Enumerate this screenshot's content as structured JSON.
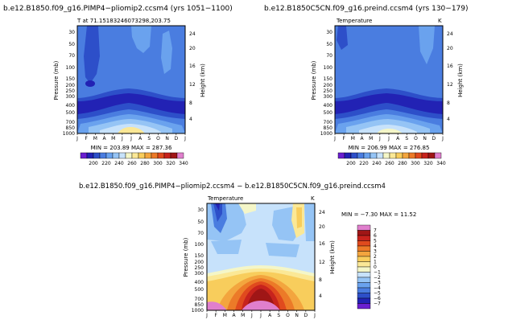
{
  "chart_data": [
    {
      "type": "heatmap",
      "title": "b.e12.B1850.f09_g16.PIMP4−pliomip2.ccsm4  (yrs 1051−1100)",
      "subtitle": "T at 71.15183246073298,203.75",
      "xlabel": "",
      "ylabel": "Pressure (mb)",
      "y2label": "Height (km)",
      "x_ticks": [
        "J",
        "F",
        "M",
        "A",
        "M",
        "J",
        "J",
        "A",
        "S",
        "O",
        "N",
        "D",
        "J"
      ],
      "y_ticks": [
        "30",
        "50",
        "70",
        "100",
        "150",
        "200",
        "250",
        "300",
        "400",
        "500",
        "700",
        "850",
        "1000"
      ],
      "y2_ticks": [
        "24",
        "20",
        "16",
        "12",
        "8",
        "4"
      ],
      "ylim": [
        1000,
        30
      ],
      "min_max_label": "MIN = 203.89  MAX = 287.36",
      "min": 203.89,
      "max": 287.36,
      "colorbar_ticks": [
        "200",
        "220",
        "240",
        "260",
        "280",
        "300",
        "320",
        "340"
      ],
      "colorbar_colors": [
        "#6a1fd0",
        "#2222b4",
        "#2d4fc9",
        "#4a7de0",
        "#6aa2ee",
        "#95c4f5",
        "#c7e2fb",
        "#f4f6c8",
        "#fbe896",
        "#f8cd5c",
        "#f3a53e",
        "#ec7a28",
        "#e04a1e",
        "#c7231d",
        "#9f1616",
        "#e07fcd"
      ]
    },
    {
      "type": "heatmap",
      "title": "b.e12.B1850C5CN.f09_g16.preind.ccsm4  (yrs 130−179)",
      "subtitle": "Temperature",
      "unit": "K",
      "xlabel": "",
      "ylabel": "Pressure (mb)",
      "y2label": "Height (km)",
      "x_ticks": [
        "J",
        "F",
        "M",
        "A",
        "M",
        "J",
        "J",
        "A",
        "S",
        "O",
        "N",
        "D",
        "J"
      ],
      "y_ticks": [
        "30",
        "50",
        "70",
        "100",
        "150",
        "200",
        "250",
        "300",
        "400",
        "500",
        "700",
        "850",
        "1000"
      ],
      "y2_ticks": [
        "24",
        "20",
        "16",
        "12",
        "8",
        "4"
      ],
      "ylim": [
        1000,
        30
      ],
      "min_max_label": "MIN = 206.99  MAX = 276.85",
      "min": 206.99,
      "max": 276.85,
      "colorbar_ticks": [
        "200",
        "220",
        "240",
        "260",
        "280",
        "300",
        "320",
        "340"
      ],
      "colorbar_colors": [
        "#6a1fd0",
        "#2222b4",
        "#2d4fc9",
        "#4a7de0",
        "#6aa2ee",
        "#95c4f5",
        "#c7e2fb",
        "#f4f6c8",
        "#fbe896",
        "#f8cd5c",
        "#f3a53e",
        "#ec7a28",
        "#e04a1e",
        "#c7231d",
        "#9f1616",
        "#e07fcd"
      ]
    },
    {
      "type": "heatmap",
      "title": "b.e12.B1850.f09_g16.PIMP4−pliomip2.ccsm4  −  b.e12.B1850C5CN.f09_g16.preind.ccsm4",
      "subtitle": "Temperature",
      "unit": "K",
      "xlabel": "",
      "ylabel": "Pressure (mb)",
      "y2label": "Height (km)",
      "x_ticks": [
        "J",
        "F",
        "M",
        "A",
        "M",
        "J",
        "J",
        "A",
        "S",
        "O",
        "N",
        "D",
        "J"
      ],
      "y_ticks": [
        "30",
        "50",
        "70",
        "100",
        "150",
        "200",
        "250",
        "300",
        "400",
        "500",
        "700",
        "850",
        "1000"
      ],
      "y2_ticks": [
        "24",
        "20",
        "16",
        "12",
        "8",
        "4"
      ],
      "ylim": [
        1000,
        30
      ],
      "min_max_label": "MIN =   −7.30  MAX =   11.52",
      "min": -7.3,
      "max": 11.52,
      "colorbar_ticks": [
        "7",
        "6",
        "5",
        "4",
        "3",
        "2",
        "1",
        "0",
        "−1",
        "−2",
        "−3",
        "−4",
        "−5",
        "−6",
        "−7"
      ],
      "colorbar_colors": [
        "#e07fcd",
        "#9f1616",
        "#c7231d",
        "#e04a1e",
        "#ec7a28",
        "#f3a53e",
        "#f8cd5c",
        "#fbe896",
        "#f4f6c8",
        "#c7e2fb",
        "#95c4f5",
        "#6aa2ee",
        "#4a7de0",
        "#2d4fc9",
        "#2222b4",
        "#6a1fd0"
      ]
    }
  ]
}
